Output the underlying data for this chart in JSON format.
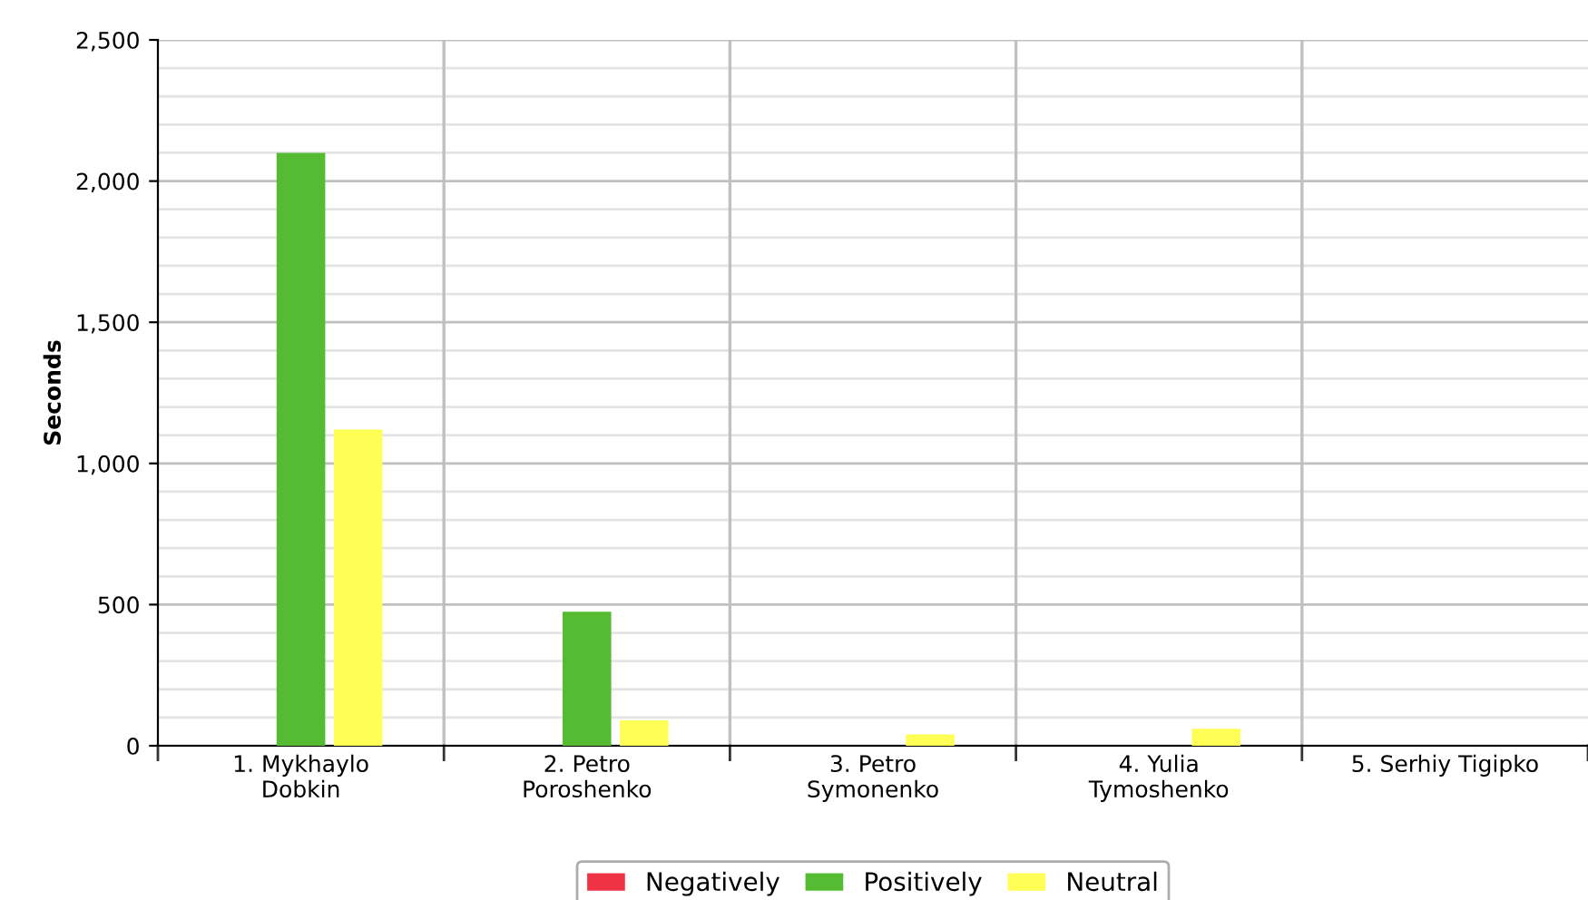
{
  "chart_data": {
    "type": "bar",
    "ylabel": "Seconds",
    "categories": [
      "1. Mykhaylo\nDobkin",
      "2. Petro\nPoroshenko",
      "3. Petro\nSymonenko",
      "4. Yulia\nTymoshenko",
      "5. Serhiy Tigipko"
    ],
    "series": [
      {
        "name": "Negatively",
        "color": "#ee3344",
        "values": [
          null,
          null,
          null,
          null,
          null
        ]
      },
      {
        "name": "Positively",
        "color": "#55bb33",
        "values": [
          2100,
          475,
          0,
          0,
          0
        ]
      },
      {
        "name": "Neutral",
        "color": "#ffff55",
        "values": [
          1120,
          90,
          40,
          60,
          0
        ]
      }
    ],
    "ylim": [
      0,
      2500
    ],
    "yticks": [
      {
        "value": 0,
        "label": "0"
      },
      {
        "value": 500,
        "label": "500"
      },
      {
        "value": 1000,
        "label": "1,000"
      },
      {
        "value": 1500,
        "label": "1,500"
      },
      {
        "value": 2000,
        "label": "2,000"
      },
      {
        "value": 2500,
        "label": "2,500"
      }
    ],
    "grid": true,
    "legend": "bottom"
  }
}
